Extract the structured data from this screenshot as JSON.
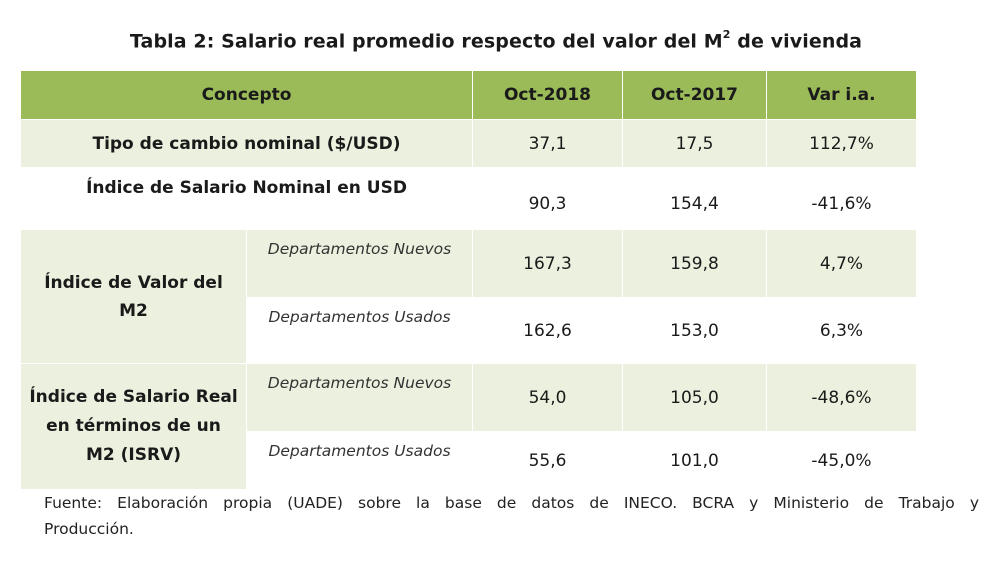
{
  "title": {
    "text": "Tabla 2: Salario real promedio respecto del valor del M",
    "sup": "2",
    "suffix": " de vivienda"
  },
  "table": {
    "headers": [
      "Concepto",
      "Oct-2018",
      "Oct-2017",
      "Var i.a."
    ],
    "rows": [
      {
        "concept": "Tipo de cambio nominal ($/USD)",
        "oct2018": "37,1",
        "oct2017": "17,5",
        "var": "112,7%"
      },
      {
        "concept": "Índice de Salario Nominal en USD",
        "oct2018": "90,3",
        "oct2017": "154,4",
        "var": "-41,6%"
      }
    ],
    "groups": [
      {
        "concept": "Índice de Valor del M2",
        "subrows": [
          {
            "label": "Departamentos Nuevos",
            "oct2018": "167,3",
            "oct2017": "159,8",
            "var": "4,7%"
          },
          {
            "label": "Departamentos Usados",
            "oct2018": "162,6",
            "oct2017": "153,0",
            "var": "6,3%"
          }
        ]
      },
      {
        "concept": "Índice de Salario Real en términos de un M2 (ISRV)",
        "subrows": [
          {
            "label": "Departamentos Nuevos",
            "oct2018": "54,0",
            "oct2017": "105,0",
            "var": "-48,6%"
          },
          {
            "label": "Departamentos Usados",
            "oct2018": "55,6",
            "oct2017": "101,0",
            "var": "-45,0%"
          }
        ]
      }
    ]
  },
  "footer": {
    "line1": "Fuente: Elaboración propia (UADE) sobre la base de datos de INECO. BCRA y Ministerio de Trabajo y",
    "line2": "Producción."
  },
  "colors": {
    "header_bg": "#9bbb59",
    "band_bg": "#ebf1de"
  }
}
